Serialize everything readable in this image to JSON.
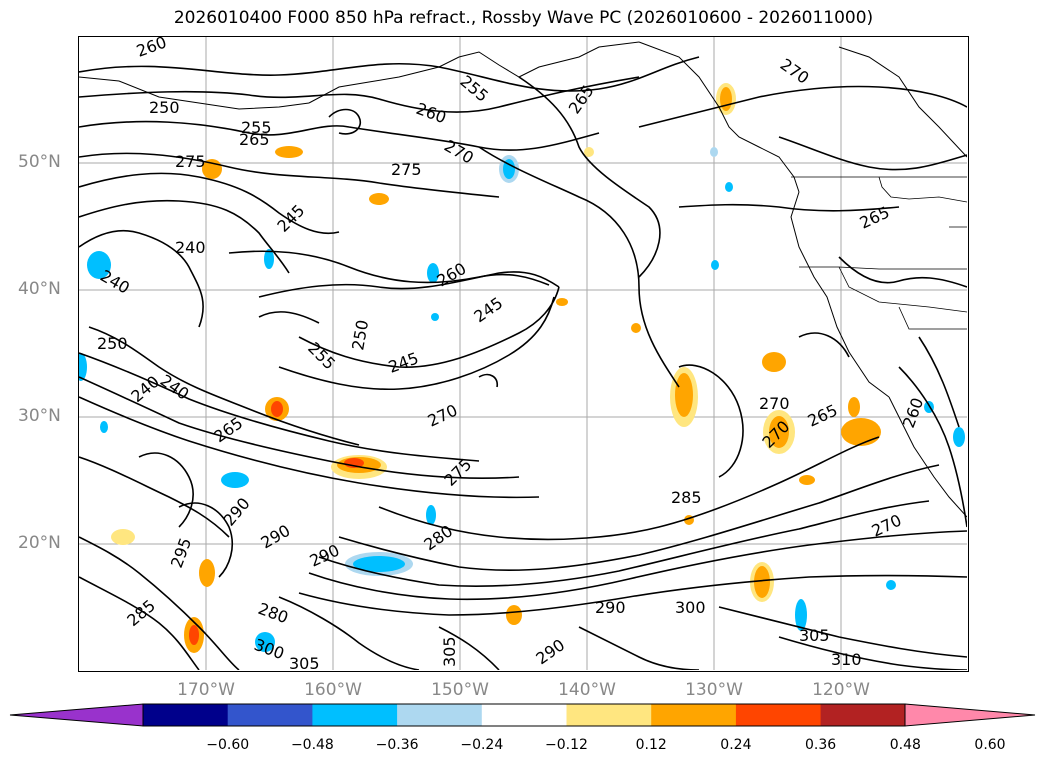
{
  "title": "2026010400 F000 850 hPa refract., Rossby Wave PC (2026010600 - 2026011000)",
  "lat_labels": [
    "50°N",
    "40°N",
    "30°N",
    "20°N"
  ],
  "lon_labels": [
    "170°W",
    "160°W",
    "150°W",
    "140°W",
    "130°W",
    "120°W"
  ],
  "contour_labels": [
    "260",
    "250",
    "255",
    "265",
    "275",
    "275",
    "270",
    "260",
    "255",
    "265",
    "270",
    "245",
    "240",
    "240",
    "260",
    "245",
    "250",
    "255",
    "245",
    "240",
    "240",
    "250",
    "265",
    "270",
    "275",
    "285",
    "270",
    "270",
    "265",
    "280",
    "290",
    "295",
    "285",
    "290",
    "290",
    "300",
    "305",
    "310",
    "305",
    "300",
    "305",
    "290",
    "280",
    "270",
    "265",
    "260",
    "290"
  ],
  "colorbar": {
    "ticks": [
      "−0.60",
      "−0.48",
      "−0.36",
      "−0.24",
      "−0.12",
      "0.12",
      "0.24",
      "0.36",
      "0.48",
      "0.60"
    ],
    "colors": [
      "#9932cc",
      "#00008b",
      "#3355cc",
      "#00bfff",
      "#add8f0",
      "#ffffff",
      "#ffe680",
      "#ffa500",
      "#ff4500",
      "#b22222",
      "#ff88aa"
    ]
  }
}
